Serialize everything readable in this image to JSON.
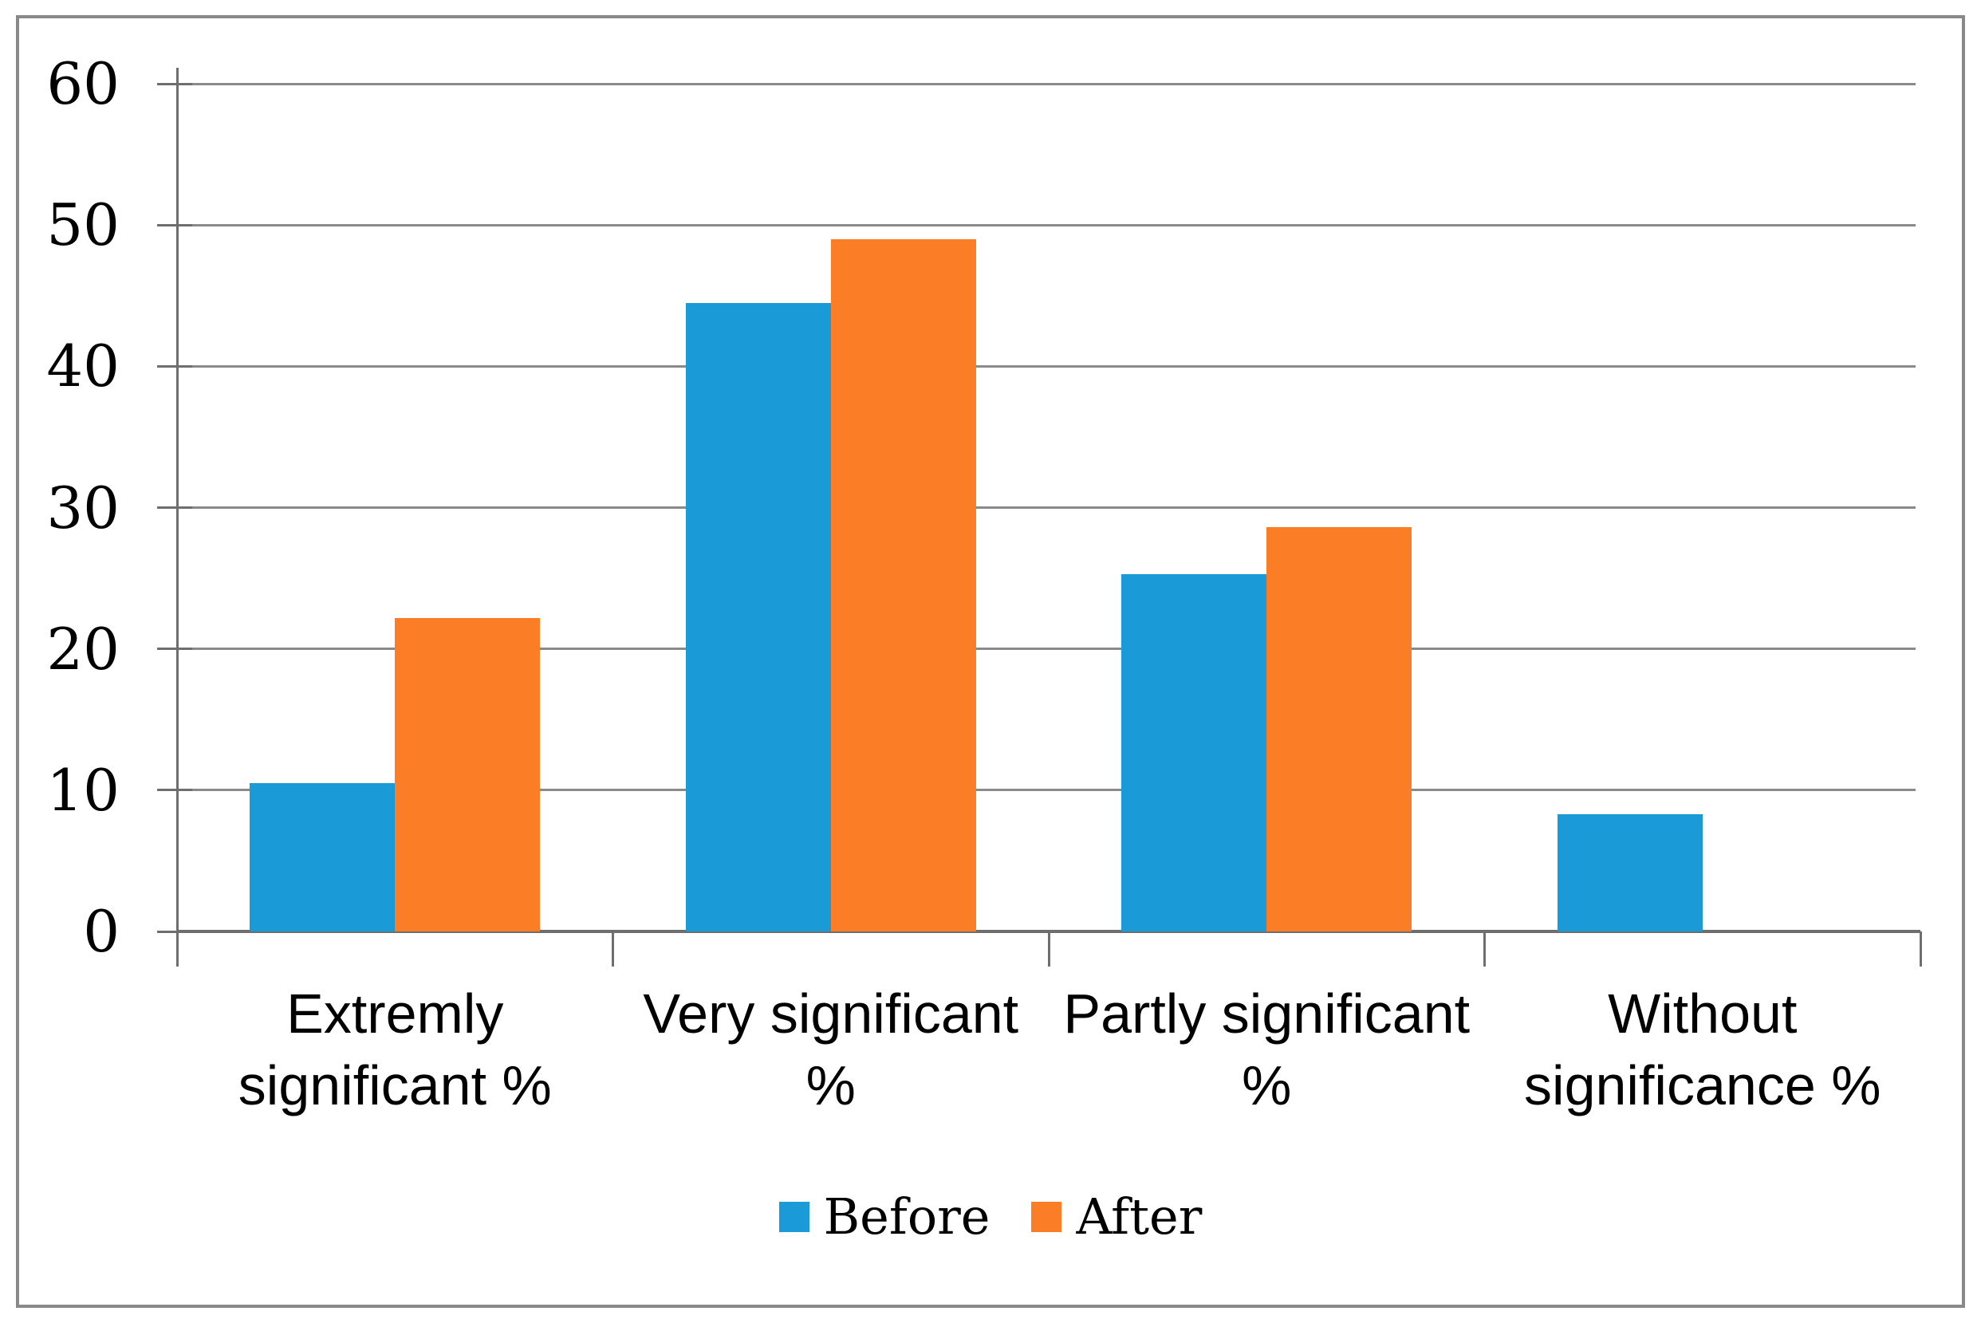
{
  "figure": {
    "background_color": "#ffffff",
    "border_color": "#898989"
  },
  "chart_data": {
    "type": "bar",
    "title": "",
    "xlabel": "",
    "ylabel": "",
    "categories": [
      "Extremly significant %",
      "Very significant %",
      "Partly significant %",
      "Without significance %"
    ],
    "category_label_lines": [
      [
        "Extremly",
        "significant %"
      ],
      [
        "Very significant",
        "%"
      ],
      [
        "Partly significant",
        "%"
      ],
      [
        "Without",
        "significance %"
      ]
    ],
    "series": [
      {
        "name": "Before",
        "color": "#1b9ad8",
        "values": [
          10.5,
          44.5,
          25.3,
          8.3
        ]
      },
      {
        "name": "After",
        "color": "#fb7d25",
        "values": [
          22.2,
          49.0,
          28.6,
          0
        ]
      }
    ],
    "ylim": [
      0,
      60
    ],
    "ytick_step": 10,
    "ytick_labels": [
      "0",
      "10",
      "20",
      "30",
      "40",
      "50",
      "60"
    ],
    "grid": "horizontal",
    "grid_color": "#8a8a8a",
    "axis_color": "#6e6e6e",
    "text_color": "#000000",
    "legend_position": "bottom",
    "legend_entries": [
      "Before",
      "After"
    ]
  }
}
